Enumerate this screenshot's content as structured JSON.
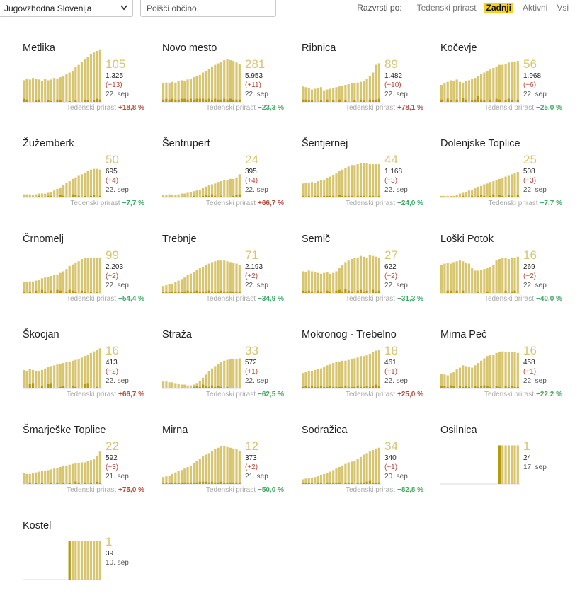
{
  "toolbar": {
    "region": "Jugovzhodna Slovenija",
    "search_placeholder": "Poišči občino",
    "sort_label": "Razvrsti po:",
    "sort_options": [
      {
        "label": "Tedenski prirast",
        "active": false
      },
      {
        "label": "Zadnji",
        "active": true
      },
      {
        "label": "Aktivni",
        "active": false
      },
      {
        "label": "Vsi",
        "active": false
      }
    ]
  },
  "colors": {
    "bar": "#d8c570",
    "bar_dark": "#b29a12",
    "up": "#b24a3a",
    "down": "#3ca864",
    "highlight": "#f5d21b"
  },
  "growth_label": "Tedenski prirast",
  "chart_data": [
    {
      "type": "bar",
      "title": "Metlika",
      "active": "105",
      "total": "1.325",
      "delta": "(+13)",
      "date": "22. sep",
      "growth": "+18,8 %",
      "growth_dir": "up",
      "values": [
        28,
        30,
        29,
        31,
        30,
        29,
        27,
        30,
        28,
        29,
        31,
        30,
        32,
        34,
        36,
        38,
        40,
        45,
        48,
        52,
        55,
        58,
        62,
        64,
        66,
        68
      ],
      "new": [
        4,
        3,
        0,
        0,
        2,
        3,
        0,
        0,
        2,
        1,
        0,
        3,
        2,
        0,
        0,
        1,
        0,
        2,
        0,
        0,
        3,
        2,
        0,
        2,
        4,
        3
      ]
    },
    {
      "type": "bar",
      "title": "Novo mesto",
      "active": "281",
      "total": "5.953",
      "delta": "(+11)",
      "date": "22. sep",
      "growth": "−23,3 %",
      "growth_dir": "down",
      "values": [
        24,
        25,
        24,
        26,
        25,
        27,
        28,
        27,
        29,
        30,
        32,
        33,
        35,
        38,
        40,
        43,
        46,
        48,
        50,
        52,
        54,
        55,
        54,
        53,
        51,
        49
      ],
      "new": [
        3,
        4,
        3,
        4,
        3,
        3,
        4,
        4,
        3,
        4,
        3,
        4,
        4,
        4,
        3,
        4,
        3,
        4,
        3,
        3,
        4,
        3,
        4,
        3,
        3,
        3
      ]
    },
    {
      "type": "bar",
      "title": "Ribnica",
      "active": "89",
      "total": "1.482",
      "delta": "(+10)",
      "date": "22. sep",
      "growth": "+78,1 %",
      "growth_dir": "up",
      "values": [
        20,
        19,
        18,
        16,
        17,
        18,
        19,
        15,
        16,
        17,
        18,
        19,
        20,
        21,
        22,
        23,
        24,
        24,
        25,
        26,
        27,
        30,
        34,
        38,
        48,
        50
      ],
      "new": [
        3,
        3,
        2,
        2,
        0,
        0,
        2,
        0,
        3,
        0,
        2,
        0,
        3,
        0,
        2,
        0,
        0,
        2,
        0,
        3,
        2,
        0,
        3,
        2,
        3,
        4
      ]
    },
    {
      "type": "bar",
      "title": "Kočevje",
      "active": "56",
      "total": "1.968",
      "delta": "(+6)",
      "date": "22. sep",
      "growth": "−25,0 %",
      "growth_dir": "down",
      "values": [
        22,
        24,
        26,
        28,
        27,
        29,
        26,
        25,
        27,
        28,
        30,
        31,
        33,
        36,
        38,
        40,
        42,
        44,
        46,
        48,
        48,
        49,
        51,
        52,
        52,
        53
      ],
      "new": [
        3,
        0,
        4,
        2,
        0,
        3,
        0,
        5,
        3,
        0,
        2,
        3,
        8,
        3,
        2,
        0,
        3,
        0,
        4,
        3,
        0,
        2,
        4,
        3,
        0,
        3
      ]
    },
    {
      "type": "bar",
      "title": "Žužemberk",
      "active": "50",
      "total": "695",
      "delta": "(+4)",
      "date": "22. sep",
      "growth": "−7,7 %",
      "growth_dir": "down",
      "values": [
        4,
        4,
        4,
        3,
        4,
        5,
        5,
        5,
        6,
        7,
        9,
        11,
        13,
        16,
        19,
        21,
        24,
        26,
        28,
        30,
        32,
        34,
        36,
        37,
        37,
        36
      ],
      "new": [
        0,
        0,
        1,
        0,
        0,
        2,
        0,
        1,
        2,
        2,
        0,
        1,
        3,
        2,
        0,
        1,
        4,
        3,
        2,
        1,
        2,
        0,
        2,
        3,
        0,
        2
      ]
    },
    {
      "type": "bar",
      "title": "Šentrupert",
      "active": "24",
      "total": "395",
      "delta": "(+4)",
      "date": "22. sep",
      "growth": "+66,7 %",
      "growth_dir": "up",
      "values": [
        3,
        3,
        4,
        3,
        3,
        4,
        5,
        5,
        6,
        7,
        8,
        9,
        10,
        12,
        14,
        16,
        17,
        18,
        20,
        21,
        22,
        23,
        24,
        24,
        26,
        30
      ],
      "new": [
        0,
        0,
        1,
        0,
        0,
        1,
        0,
        1,
        0,
        1,
        2,
        0,
        1,
        2,
        3,
        2,
        4,
        2,
        1,
        2,
        0,
        1,
        0,
        2,
        3,
        4
      ]
    },
    {
      "type": "bar",
      "title": "Šentjernej",
      "active": "44",
      "total": "1.168",
      "delta": "(+3)",
      "date": "22. sep",
      "growth": "−24,0 %",
      "growth_dir": "down",
      "values": [
        18,
        19,
        19,
        20,
        19,
        21,
        22,
        23,
        25,
        27,
        29,
        31,
        34,
        36,
        38,
        40,
        42,
        42,
        43,
        44,
        44,
        44,
        43,
        43,
        43,
        43
      ],
      "new": [
        2,
        1,
        2,
        1,
        2,
        2,
        1,
        2,
        2,
        2,
        2,
        1,
        3,
        2,
        2,
        2,
        2,
        1,
        2,
        2,
        2,
        1,
        2,
        2,
        1,
        2
      ]
    },
    {
      "type": "bar",
      "title": "Dolenjske Toplice",
      "active": "25",
      "total": "508",
      "delta": "(+3)",
      "date": "22. sep",
      "growth": "−7,7 %",
      "growth_dir": "down",
      "values": [
        2,
        2,
        2,
        2,
        2,
        3,
        5,
        6,
        7,
        9,
        10,
        12,
        14,
        15,
        17,
        18,
        20,
        21,
        22,
        24,
        25,
        27,
        28,
        30,
        31,
        33
      ],
      "new": [
        0,
        0,
        0,
        0,
        0,
        1,
        0,
        2,
        0,
        1,
        2,
        0,
        2,
        3,
        2,
        0,
        2,
        4,
        1,
        3,
        2,
        0,
        3,
        2,
        1,
        3
      ]
    },
    {
      "type": "bar",
      "title": "Črnomelj",
      "active": "99",
      "total": "2.203",
      "delta": "(+2)",
      "date": "22. sep",
      "growth": "−54,4 %",
      "growth_dir": "down",
      "values": [
        14,
        14,
        15,
        15,
        16,
        17,
        19,
        20,
        21,
        22,
        23,
        24,
        26,
        28,
        31,
        35,
        37,
        39,
        41,
        44,
        45,
        45,
        45,
        45,
        45,
        45
      ],
      "new": [
        2,
        0,
        2,
        0,
        3,
        0,
        4,
        2,
        0,
        3,
        0,
        4,
        3,
        0,
        2,
        4,
        3,
        2,
        0,
        3,
        2,
        0,
        1,
        0,
        1,
        0
      ]
    },
    {
      "type": "bar",
      "title": "Trebnje",
      "active": "71",
      "total": "2.193",
      "delta": "(+2)",
      "date": "22. sep",
      "growth": "−34,9 %",
      "growth_dir": "down",
      "values": [
        9,
        10,
        11,
        12,
        14,
        16,
        18,
        20,
        23,
        25,
        27,
        30,
        32,
        34,
        36,
        38,
        40,
        41,
        42,
        42,
        42,
        41,
        40,
        39,
        38,
        36
      ],
      "new": [
        1,
        2,
        1,
        2,
        2,
        2,
        1,
        2,
        3,
        2,
        2,
        3,
        2,
        2,
        2,
        3,
        2,
        2,
        2,
        3,
        2,
        2,
        2,
        2,
        2,
        2
      ]
    },
    {
      "type": "bar",
      "title": "Semič",
      "active": "27",
      "total": "622",
      "delta": "(+2)",
      "date": "22. sep",
      "growth": "−31,3 %",
      "growth_dir": "down",
      "values": [
        28,
        27,
        29,
        28,
        27,
        26,
        25,
        26,
        27,
        25,
        26,
        28,
        32,
        36,
        40,
        42,
        44,
        45,
        46,
        48,
        47,
        46,
        49,
        48,
        47,
        46
      ],
      "new": [
        3,
        2,
        3,
        2,
        0,
        3,
        2,
        0,
        3,
        2,
        0,
        3,
        4,
        2,
        5,
        3,
        2,
        0,
        3,
        4,
        2,
        3,
        0,
        4,
        2,
        3
      ]
    },
    {
      "type": "bar",
      "title": "Loški Potok",
      "active": "16",
      "total": "269",
      "delta": "(+2)",
      "date": "22. sep",
      "growth": "−40,0 %",
      "growth_dir": "down",
      "values": [
        36,
        38,
        39,
        38,
        40,
        41,
        42,
        41,
        39,
        38,
        32,
        29,
        29,
        30,
        31,
        32,
        33,
        36,
        42,
        44,
        45,
        45,
        44,
        46,
        45,
        47
      ],
      "new": [
        0,
        0,
        3,
        3,
        0,
        3,
        0,
        3,
        0,
        0,
        0,
        0,
        2,
        0,
        0,
        2,
        0,
        0,
        0,
        0,
        0,
        3,
        0,
        2,
        3,
        0
      ]
    },
    {
      "type": "bar",
      "title": "Škocjan",
      "active": "16",
      "total": "413",
      "delta": "(+2)",
      "date": "22. sep",
      "growth": "+66,7 %",
      "growth_dir": "up",
      "values": [
        24,
        23,
        25,
        24,
        23,
        22,
        24,
        26,
        28,
        29,
        30,
        31,
        32,
        33,
        34,
        35,
        36,
        37,
        38,
        40,
        42,
        44,
        46,
        48,
        50,
        52
      ],
      "new": [
        0,
        0,
        6,
        7,
        0,
        0,
        3,
        0,
        6,
        7,
        0,
        0,
        2,
        3,
        0,
        0,
        3,
        2,
        0,
        0,
        6,
        7,
        0,
        0,
        2,
        0
      ]
    },
    {
      "type": "bar",
      "title": "Straža",
      "active": "33",
      "total": "572",
      "delta": "(+1)",
      "date": "22. sep",
      "growth": "−62,5 %",
      "growth_dir": "down",
      "values": [
        9,
        9,
        8,
        8,
        7,
        6,
        5,
        5,
        4,
        4,
        5,
        7,
        10,
        14,
        18,
        22,
        26,
        29,
        32,
        34,
        36,
        37,
        38,
        38,
        38,
        39
      ],
      "new": [
        0,
        0,
        1,
        0,
        0,
        0,
        1,
        0,
        0,
        0,
        2,
        3,
        2,
        5,
        3,
        2,
        4,
        2,
        3,
        2,
        1,
        2,
        0,
        1,
        0,
        1
      ]
    },
    {
      "type": "bar",
      "title": "Mokronog - Trebelno",
      "active": "18",
      "total": "461",
      "delta": "(+1)",
      "date": "22. sep",
      "growth": "+25,0 %",
      "growth_dir": "up",
      "values": [
        20,
        21,
        22,
        23,
        24,
        25,
        26,
        28,
        30,
        31,
        33,
        34,
        35,
        36,
        36,
        37,
        38,
        39,
        40,
        42,
        42,
        43,
        45,
        47,
        49,
        50
      ],
      "new": [
        2,
        3,
        2,
        3,
        2,
        2,
        3,
        2,
        2,
        3,
        2,
        2,
        2,
        2,
        3,
        2,
        2,
        2,
        3,
        2,
        2,
        3,
        2,
        3,
        5,
        3
      ]
    },
    {
      "type": "bar",
      "title": "Mirna Peč",
      "active": "16",
      "total": "458",
      "delta": "(+1)",
      "date": "22. sep",
      "growth": "−22,2 %",
      "growth_dir": "down",
      "values": [
        19,
        18,
        17,
        20,
        21,
        25,
        27,
        30,
        29,
        28,
        27,
        30,
        33,
        36,
        39,
        42,
        43,
        44,
        46,
        47,
        48,
        47,
        47,
        47,
        47,
        46
      ],
      "new": [
        3,
        3,
        2,
        4,
        3,
        0,
        3,
        2,
        3,
        2,
        0,
        3,
        2,
        3,
        4,
        3,
        2,
        0,
        3,
        2,
        0,
        3,
        2,
        3,
        2,
        2
      ]
    },
    {
      "type": "bar",
      "title": "Šmarješke Toplice",
      "active": "22",
      "total": "592",
      "delta": "(+3)",
      "date": "21. sep",
      "growth": "+75,0 %",
      "growth_dir": "up",
      "values": [
        14,
        13,
        13,
        14,
        15,
        16,
        17,
        17,
        18,
        19,
        20,
        21,
        22,
        23,
        24,
        25,
        26,
        27,
        27,
        28,
        28,
        30,
        31,
        32,
        36,
        42
      ],
      "new": [
        0,
        0,
        2,
        0,
        1,
        0,
        2,
        0,
        0,
        2,
        0,
        2,
        0,
        1,
        0,
        2,
        0,
        3,
        2,
        0,
        2,
        0,
        2,
        0,
        3,
        2
      ]
    },
    {
      "type": "bar",
      "title": "Mirna",
      "active": "12",
      "total": "373",
      "delta": "(+2)",
      "date": "21. sep",
      "growth": "−50,0 %",
      "growth_dir": "down",
      "values": [
        9,
        10,
        11,
        13,
        15,
        17,
        18,
        20,
        22,
        24,
        27,
        30,
        33,
        36,
        38,
        40,
        43,
        45,
        47,
        49,
        49,
        48,
        47,
        46,
        45,
        43
      ],
      "new": [
        1,
        2,
        1,
        2,
        2,
        1,
        2,
        2,
        2,
        2,
        2,
        2,
        3,
        3,
        3,
        2,
        3,
        2,
        2,
        3,
        2,
        2,
        2,
        2,
        2,
        2
      ]
    },
    {
      "type": "bar",
      "title": "Sodražica",
      "active": "34",
      "total": "340",
      "delta": "(+1)",
      "date": "20. sep",
      "growth": "−82,8 %",
      "growth_dir": "down",
      "values": [
        6,
        7,
        8,
        8,
        9,
        10,
        12,
        13,
        14,
        16,
        18,
        20,
        22,
        24,
        26,
        28,
        29,
        30,
        32,
        35,
        38,
        40,
        42,
        44,
        46,
        47
      ],
      "new": [
        1,
        1,
        2,
        1,
        0,
        2,
        1,
        0,
        2,
        1,
        2,
        1,
        2,
        0,
        2,
        1,
        2,
        0,
        1,
        2,
        2,
        3,
        4,
        2,
        1,
        2
      ]
    },
    {
      "type": "bar",
      "title": "Osilnica",
      "active": "1",
      "total": "24",
      "delta": "",
      "date": "17. sep",
      "growth": "",
      "growth_dir": "",
      "values": [
        0,
        0,
        0,
        0,
        0,
        0,
        0,
        0,
        0,
        0,
        0,
        0,
        0,
        0,
        0,
        0,
        0,
        0,
        0,
        50,
        50,
        50,
        50,
        50,
        50,
        50
      ],
      "new": [
        0,
        0,
        0,
        0,
        0,
        0,
        0,
        0,
        0,
        0,
        0,
        0,
        0,
        0,
        0,
        0,
        0,
        0,
        0,
        50,
        0,
        0,
        0,
        0,
        0,
        0
      ]
    },
    {
      "type": "bar",
      "title": "Kostel",
      "active": "1",
      "total": "39",
      "delta": "",
      "date": "10. sep",
      "growth": "",
      "growth_dir": "",
      "values": [
        0,
        0,
        0,
        0,
        0,
        0,
        0,
        0,
        0,
        0,
        0,
        0,
        0,
        0,
        0,
        50,
        50,
        50,
        50,
        50,
        50,
        50,
        50,
        50,
        50,
        50
      ],
      "new": [
        0,
        0,
        0,
        0,
        0,
        0,
        0,
        0,
        0,
        0,
        0,
        0,
        0,
        0,
        0,
        50,
        0,
        0,
        0,
        0,
        0,
        0,
        0,
        0,
        0,
        0
      ]
    }
  ]
}
